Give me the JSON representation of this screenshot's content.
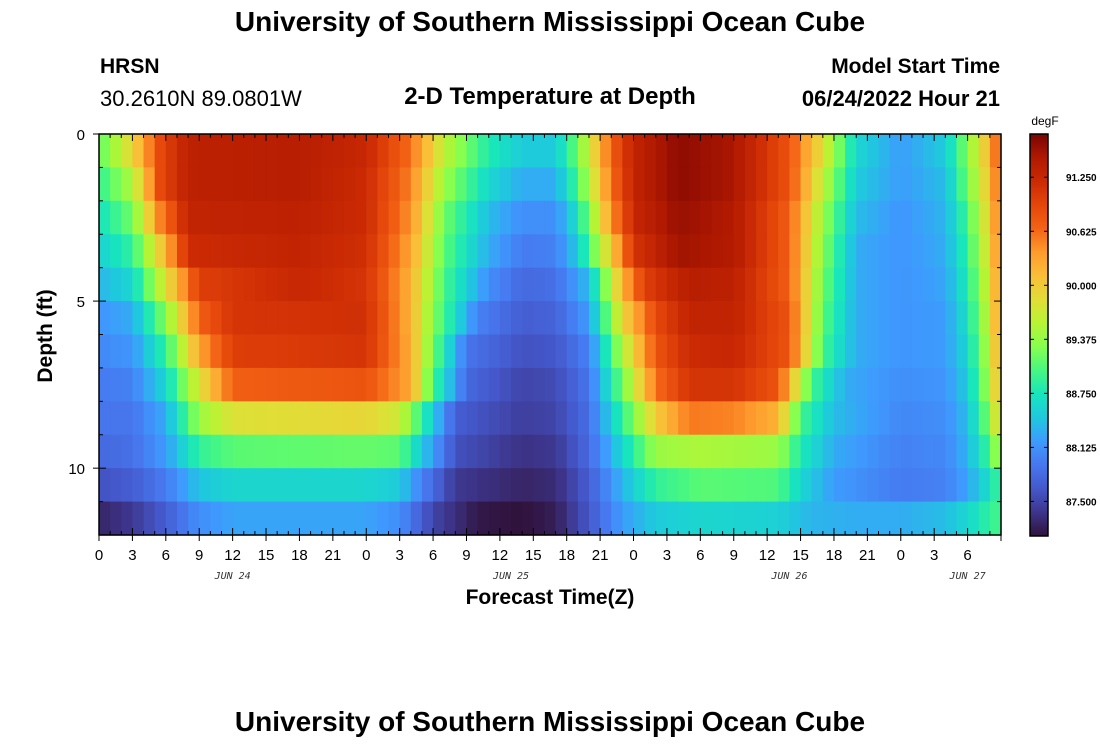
{
  "header": {
    "title": "University of Southern Mississippi Ocean Cube",
    "station_name": "HRSN",
    "station_coords": "30.2610N  89.0801W",
    "subtitle": "2-D Temperature at Depth",
    "model_start_label": "Model Start Time",
    "model_start_value": "06/24/2022 Hour 21"
  },
  "footer": {
    "title": "University of Southern Mississippi Ocean Cube"
  },
  "chart_data": {
    "type": "heatmap",
    "title": "2-D Temperature at Depth",
    "xlabel": "Forecast Time(Z)",
    "ylabel": "Depth (ft)",
    "colorbar_label": "degF",
    "colorbar_ticks": [
      "91.250",
      "90.625",
      "90.000",
      "89.375",
      "88.750",
      "88.125",
      "87.500"
    ],
    "colorbar_tick_values": [
      91.25,
      90.625,
      90.0,
      89.375,
      88.75,
      88.125,
      87.5
    ],
    "value_range": [
      87.1,
      91.75
    ],
    "x_hours_range": [
      0,
      81
    ],
    "x_tick_hours": [
      0,
      3,
      6,
      9,
      12,
      15,
      18,
      21,
      24,
      27,
      30,
      33,
      36,
      39,
      42,
      45,
      48,
      51,
      54,
      57,
      60,
      63,
      66,
      69,
      72,
      75,
      78,
      81
    ],
    "x_tick_labels": [
      "0",
      "3",
      "6",
      "9",
      "12",
      "15",
      "18",
      "21",
      "0",
      "3",
      "6",
      "9",
      "12",
      "15",
      "18",
      "21",
      "0",
      "3",
      "6",
      "9",
      "12",
      "15",
      "18",
      "21",
      "0",
      "3",
      "6"
    ],
    "x_tick_labels_note": "labels correspond to tick hours 0..78 from model start day 00Z",
    "date_labels": [
      {
        "text": "JUN 24",
        "hour": 12
      },
      {
        "text": "JUN 25",
        "hour": 37
      },
      {
        "text": "JUN 26",
        "hour": 62
      },
      {
        "text": "JUN 27",
        "hour": 78
      }
    ],
    "y_range": [
      0,
      12
    ],
    "y_ticks": [
      0,
      5,
      10
    ],
    "y_tick_labels": [
      "0",
      "5",
      "10"
    ],
    "depth_rows": 12,
    "time_columns": 81,
    "temperature_model": {
      "description": "estimated cell values in degF; each depth row follows a piecewise-linear profile over forecast hour",
      "row_profiles": [
        [
          [
            0,
            89.1
          ],
          [
            3,
            89.9
          ],
          [
            5.5,
            90.9
          ],
          [
            8,
            91.35
          ],
          [
            18,
            91.4
          ],
          [
            24,
            91.25
          ],
          [
            28,
            90.6
          ],
          [
            31,
            89.6
          ],
          [
            35,
            88.8
          ],
          [
            38,
            88.5
          ],
          [
            41,
            88.5
          ],
          [
            43,
            89.2
          ],
          [
            46,
            90.7
          ],
          [
            48,
            91.3
          ],
          [
            52,
            91.65
          ],
          [
            57,
            91.5
          ],
          [
            62,
            90.8
          ],
          [
            65,
            89.8
          ],
          [
            68,
            88.6
          ],
          [
            72,
            88.2
          ],
          [
            76,
            88.5
          ],
          [
            78,
            89.3
          ],
          [
            80,
            90.2
          ],
          [
            81,
            90.9
          ]
        ],
        [
          [
            0,
            88.9
          ],
          [
            3,
            89.5
          ],
          [
            5.5,
            90.9
          ],
          [
            8,
            91.35
          ],
          [
            18,
            91.4
          ],
          [
            24,
            91.2
          ],
          [
            28,
            90.5
          ],
          [
            31,
            89.4
          ],
          [
            35,
            88.6
          ],
          [
            38,
            88.3
          ],
          [
            41,
            88.3
          ],
          [
            43,
            89.0
          ],
          [
            46,
            90.6
          ],
          [
            48,
            91.3
          ],
          [
            52,
            91.65
          ],
          [
            57,
            91.5
          ],
          [
            62,
            90.8
          ],
          [
            65,
            89.6
          ],
          [
            68,
            88.5
          ],
          [
            72,
            88.2
          ],
          [
            76,
            88.4
          ],
          [
            78,
            89.2
          ],
          [
            80,
            90.1
          ],
          [
            81,
            90.8
          ]
        ],
        [
          [
            0,
            88.7
          ],
          [
            3,
            89.2
          ],
          [
            5.5,
            90.5
          ],
          [
            8,
            91.3
          ],
          [
            18,
            91.35
          ],
          [
            24,
            91.2
          ],
          [
            28,
            90.4
          ],
          [
            31,
            89.2
          ],
          [
            35,
            88.4
          ],
          [
            38,
            88.1
          ],
          [
            41,
            88.1
          ],
          [
            43,
            88.7
          ],
          [
            46,
            90.4
          ],
          [
            48,
            91.25
          ],
          [
            52,
            91.6
          ],
          [
            57,
            91.45
          ],
          [
            62,
            90.7
          ],
          [
            65,
            89.4
          ],
          [
            68,
            88.4
          ],
          [
            72,
            88.15
          ],
          [
            76,
            88.35
          ],
          [
            78,
            89.0
          ],
          [
            80,
            90.0
          ],
          [
            81,
            90.7
          ]
        ],
        [
          [
            0,
            88.55
          ],
          [
            3,
            88.9
          ],
          [
            6,
            90.2
          ],
          [
            8,
            91.2
          ],
          [
            18,
            91.3
          ],
          [
            24,
            91.15
          ],
          [
            28,
            90.3
          ],
          [
            31,
            89.1
          ],
          [
            35,
            88.3
          ],
          [
            38,
            87.95
          ],
          [
            41,
            88.0
          ],
          [
            43,
            88.5
          ],
          [
            46,
            90.0
          ],
          [
            48,
            91.1
          ],
          [
            52,
            91.55
          ],
          [
            57,
            91.45
          ],
          [
            62,
            90.7
          ],
          [
            65,
            89.3
          ],
          [
            68,
            88.3
          ],
          [
            72,
            88.15
          ],
          [
            76,
            88.3
          ],
          [
            78,
            88.9
          ],
          [
            80,
            89.9
          ],
          [
            81,
            90.6
          ]
        ],
        [
          [
            0,
            88.35
          ],
          [
            3,
            88.6
          ],
          [
            6,
            89.8
          ],
          [
            9,
            91.0
          ],
          [
            18,
            91.25
          ],
          [
            24,
            91.1
          ],
          [
            28,
            90.2
          ],
          [
            31,
            89.0
          ],
          [
            35,
            88.1
          ],
          [
            38,
            87.8
          ],
          [
            41,
            87.85
          ],
          [
            44,
            88.4
          ],
          [
            47,
            90.2
          ],
          [
            49,
            91.0
          ],
          [
            53,
            91.4
          ],
          [
            57,
            91.35
          ],
          [
            62,
            90.7
          ],
          [
            65,
            89.2
          ],
          [
            68,
            88.3
          ],
          [
            72,
            88.15
          ],
          [
            76,
            88.25
          ],
          [
            78,
            88.8
          ],
          [
            80,
            89.8
          ],
          [
            81,
            90.5
          ]
        ],
        [
          [
            0,
            88.15
          ],
          [
            3,
            88.3
          ],
          [
            6,
            89.3
          ],
          [
            9,
            90.7
          ],
          [
            12,
            91.1
          ],
          [
            24,
            91.15
          ],
          [
            28,
            90.2
          ],
          [
            30,
            89.3
          ],
          [
            34,
            88.0
          ],
          [
            38,
            87.7
          ],
          [
            41,
            87.75
          ],
          [
            44,
            88.2
          ],
          [
            47,
            89.9
          ],
          [
            50,
            90.9
          ],
          [
            53,
            91.3
          ],
          [
            57,
            91.3
          ],
          [
            62,
            90.8
          ],
          [
            65,
            89.1
          ],
          [
            68,
            88.3
          ],
          [
            72,
            88.15
          ],
          [
            76,
            88.2
          ],
          [
            78,
            88.7
          ],
          [
            80,
            89.7
          ],
          [
            81,
            90.5
          ]
        ],
        [
          [
            0,
            88.05
          ],
          [
            3,
            88.15
          ],
          [
            6,
            88.9
          ],
          [
            9,
            90.3
          ],
          [
            12,
            91.0
          ],
          [
            24,
            91.1
          ],
          [
            28,
            90.25
          ],
          [
            30,
            89.2
          ],
          [
            33,
            87.9
          ],
          [
            38,
            87.6
          ],
          [
            41,
            87.65
          ],
          [
            44,
            88.0
          ],
          [
            47,
            89.5
          ],
          [
            50,
            90.8
          ],
          [
            53,
            91.2
          ],
          [
            57,
            91.25
          ],
          [
            62,
            90.8
          ],
          [
            65,
            89.0
          ],
          [
            68,
            88.3
          ],
          [
            72,
            88.15
          ],
          [
            76,
            88.2
          ],
          [
            78,
            88.6
          ],
          [
            80,
            89.6
          ],
          [
            81,
            90.4
          ]
        ],
        [
          [
            0,
            87.95
          ],
          [
            3,
            88.0
          ],
          [
            6,
            88.6
          ],
          [
            9,
            89.8
          ],
          [
            12,
            90.7
          ],
          [
            24,
            90.8
          ],
          [
            28,
            90.3
          ],
          [
            30,
            89.0
          ],
          [
            33,
            87.8
          ],
          [
            38,
            87.5
          ],
          [
            41,
            87.55
          ],
          [
            44,
            87.9
          ],
          [
            47,
            89.2
          ],
          [
            50,
            90.6
          ],
          [
            53,
            91.1
          ],
          [
            57,
            91.1
          ],
          [
            61,
            90.8
          ],
          [
            64,
            89.0
          ],
          [
            67,
            88.3
          ],
          [
            72,
            88.1
          ],
          [
            76,
            88.15
          ],
          [
            78,
            88.5
          ],
          [
            80,
            89.5
          ],
          [
            81,
            90.3
          ]
        ],
        [
          [
            0,
            87.9
          ],
          [
            3,
            87.9
          ],
          [
            6,
            88.3
          ],
          [
            9,
            89.4
          ],
          [
            12,
            89.8
          ],
          [
            24,
            89.9
          ],
          [
            27,
            89.7
          ],
          [
            29,
            88.9
          ],
          [
            32,
            87.7
          ],
          [
            38,
            87.45
          ],
          [
            41,
            87.5
          ],
          [
            44,
            87.85
          ],
          [
            47,
            88.9
          ],
          [
            50,
            90.0
          ],
          [
            53,
            90.55
          ],
          [
            57,
            90.5
          ],
          [
            61,
            90.2
          ],
          [
            63,
            89.0
          ],
          [
            66,
            88.4
          ],
          [
            72,
            88.05
          ],
          [
            76,
            88.1
          ],
          [
            78,
            88.4
          ],
          [
            80,
            89.3
          ],
          [
            81,
            90.1
          ]
        ],
        [
          [
            0,
            87.8
          ],
          [
            3,
            87.85
          ],
          [
            6,
            88.2
          ],
          [
            9,
            88.9
          ],
          [
            12,
            89.1
          ],
          [
            24,
            89.15
          ],
          [
            27,
            89.1
          ],
          [
            29,
            88.5
          ],
          [
            32,
            87.6
          ],
          [
            38,
            87.35
          ],
          [
            41,
            87.4
          ],
          [
            44,
            87.8
          ],
          [
            47,
            88.6
          ],
          [
            50,
            89.4
          ],
          [
            54,
            89.5
          ],
          [
            61,
            89.4
          ],
          [
            63,
            88.8
          ],
          [
            66,
            88.3
          ],
          [
            72,
            88.0
          ],
          [
            76,
            88.05
          ],
          [
            78,
            88.35
          ],
          [
            80,
            89.0
          ],
          [
            81,
            89.6
          ]
        ],
        [
          [
            0,
            87.6
          ],
          [
            3,
            87.7
          ],
          [
            6,
            87.95
          ],
          [
            9,
            88.45
          ],
          [
            12,
            88.6
          ],
          [
            24,
            88.6
          ],
          [
            27,
            88.5
          ],
          [
            29,
            88.0
          ],
          [
            32,
            87.4
          ],
          [
            38,
            87.25
          ],
          [
            41,
            87.3
          ],
          [
            44,
            87.7
          ],
          [
            47,
            88.35
          ],
          [
            50,
            88.9
          ],
          [
            54,
            89.1
          ],
          [
            61,
            89.05
          ],
          [
            63,
            88.6
          ],
          [
            66,
            88.2
          ],
          [
            72,
            87.95
          ],
          [
            76,
            88.0
          ],
          [
            78,
            88.25
          ],
          [
            80,
            88.7
          ],
          [
            81,
            89.0
          ]
        ],
        [
          [
            0,
            87.25
          ],
          [
            3,
            87.4
          ],
          [
            6,
            87.7
          ],
          [
            9,
            88.1
          ],
          [
            12,
            88.25
          ],
          [
            24,
            88.25
          ],
          [
            27,
            88.1
          ],
          [
            30,
            87.5
          ],
          [
            34,
            87.15
          ],
          [
            38,
            87.1
          ],
          [
            41,
            87.2
          ],
          [
            44,
            87.65
          ],
          [
            47,
            88.2
          ],
          [
            50,
            88.5
          ],
          [
            54,
            88.6
          ],
          [
            61,
            88.55
          ],
          [
            64,
            88.35
          ],
          [
            68,
            88.3
          ],
          [
            72,
            88.3
          ],
          [
            76,
            88.4
          ],
          [
            78,
            88.6
          ],
          [
            80,
            88.9
          ],
          [
            81,
            89.0
          ]
        ]
      ]
    },
    "colormap": [
      "#30123b",
      "#3d358b",
      "#4458cb",
      "#4777ef",
      "#3e9bfe",
      "#1fc8de",
      "#18e5bd",
      "#46f783",
      "#86fe4f",
      "#b7f434",
      "#e1dd37",
      "#f9be37",
      "#fe9b2d",
      "#f36315",
      "#e4460a",
      "#cb2a04",
      "#b01901",
      "#7a0403"
    ]
  }
}
